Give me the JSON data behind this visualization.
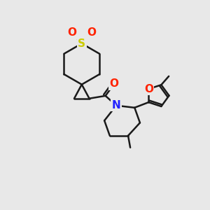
{
  "bg_color": "#e8e8e8",
  "bond_color": "#1a1a1a",
  "bond_width": 1.8,
  "atom_colors": {
    "S": "#cccc00",
    "O": "#ff2200",
    "N": "#2222ff",
    "C": "#1a1a1a"
  },
  "font_size_atom": 11,
  "fig_size": [
    3.0,
    3.0
  ],
  "dpi": 100
}
